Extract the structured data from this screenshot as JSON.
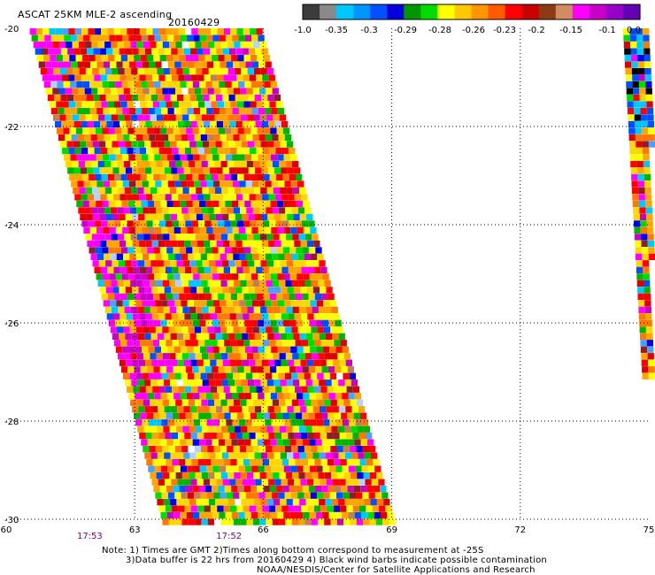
{
  "header": {
    "title": "ASCAT 25KM MLE-2 ascending",
    "date": "20160429"
  },
  "colorbar": {
    "colors": [
      "#3c3c3c",
      "#8a8a8a",
      "#00c8ff",
      "#0096ff",
      "#0050ff",
      "#0000dc",
      "#009600",
      "#00dc00",
      "#ffff00",
      "#ffc800",
      "#ff9600",
      "#ff5a00",
      "#ff0000",
      "#c80000",
      "#8c3c14",
      "#d28c64",
      "#ff00ff",
      "#c800c8",
      "#9600c8",
      "#6400b4"
    ],
    "tick_labels": [
      "-1.0",
      "-0.35",
      "-0.3",
      "-0.29",
      "-0.28",
      "-0.26",
      "-0.23",
      "-0.2",
      "-0.15",
      "-0.1",
      "0.0"
    ]
  },
  "chart_data": {
    "type": "heatmap",
    "x_range": [
      60,
      75
    ],
    "y_range": [
      -30,
      -20
    ],
    "x_ticks": [
      "60",
      "63",
      "66",
      "69",
      "72",
      "75"
    ],
    "y_ticks": [
      "-20",
      "-22",
      "-24",
      "-26",
      "-28",
      "-30"
    ],
    "grid": "dotted",
    "swath_times": [
      "17:53",
      "17:52"
    ],
    "cell_palette": [
      "#ffff00",
      "#ffd700",
      "#ffa500",
      "#ff7800",
      "#ff0000",
      "#dc0000",
      "#00b400",
      "#00dc00",
      "#0050ff",
      "#0000e6",
      "#00c8ff",
      "#4aa0ff",
      "#ff00ff",
      "#c800c8",
      "#8c1e28",
      "#c08050",
      "#b4d2ff",
      "#ffffff"
    ]
  },
  "notes": {
    "line1": "Note: 1) Times are GMT 2)Times along bottom correspond to measurement at -25S",
    "line2": "3)Data buffer is 22 hrs from 20160429 4) Black wind barbs indicate possible contamination",
    "line3": "NOAA/NESDIS/Center for Satellite Applications and Research"
  }
}
